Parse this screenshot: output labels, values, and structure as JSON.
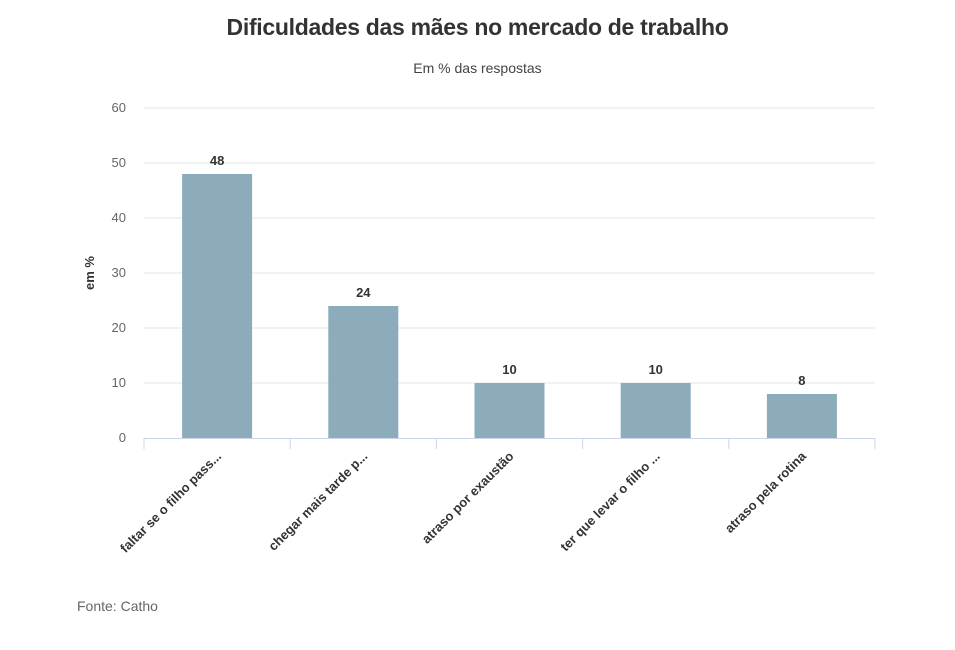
{
  "chart_data": {
    "type": "bar",
    "title": "Dificuldades das mães no mercado de trabalho",
    "subtitle": "Em % das respostas",
    "ylabel": "em %",
    "xlabel": "",
    "source": "Fonte: Catho",
    "categories": [
      "faltar se o filho pass...",
      "chegar mais tarde p...",
      "atraso por exaustão",
      "ter que levar o filho ...",
      "atraso pela rotina"
    ],
    "values": [
      48,
      24,
      10,
      10,
      8
    ],
    "ylim": [
      0,
      60
    ],
    "yticks": [
      0,
      10,
      20,
      30,
      40,
      50,
      60
    ],
    "grid": true,
    "legend": "none",
    "bar_color": "#8cabbb",
    "grid_color": "#e6e6e6",
    "axis_color": "#ccd6eb"
  }
}
